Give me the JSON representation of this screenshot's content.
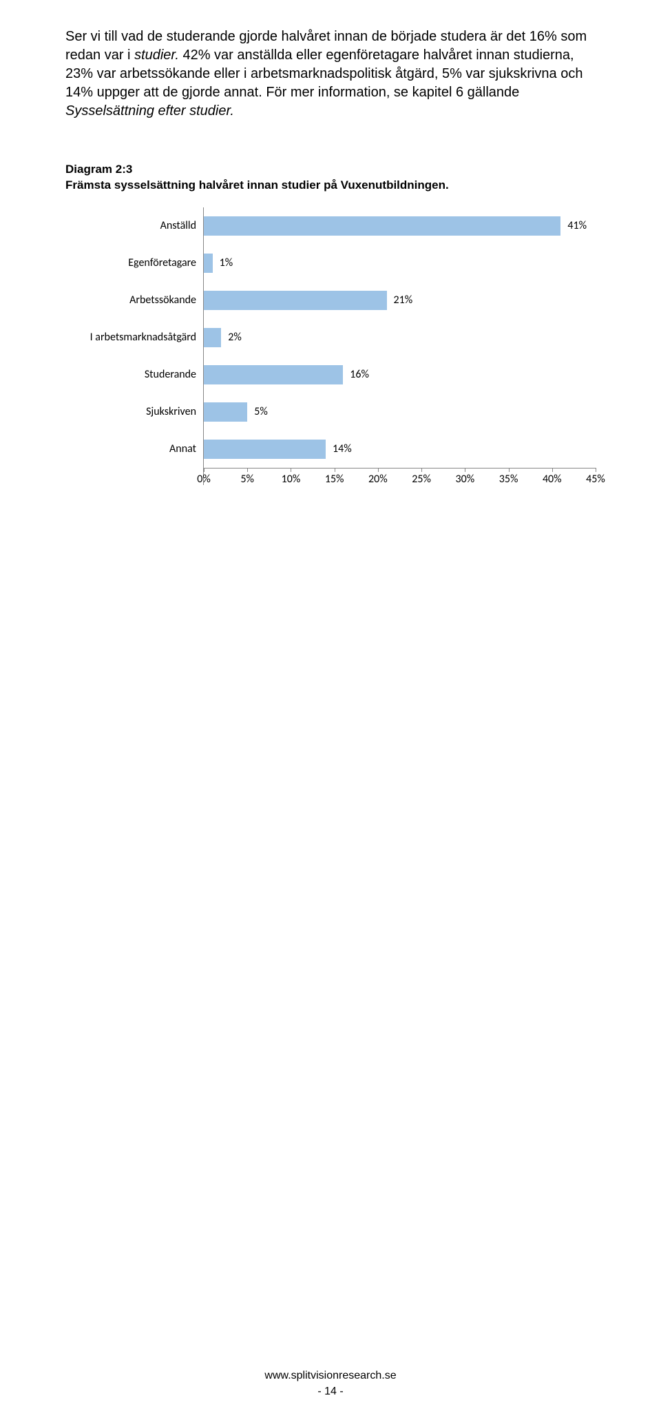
{
  "body_text": {
    "p1_pre": "Ser vi till vad de studerande gjorde halvåret innan de började studera är det 16% som redan var i ",
    "p1_italic": "studier.",
    "p1_post": " 42% var anställda eller egenföretagare halvåret innan studierna, 23% var arbetssökande eller i arbetsmarknadspolitisk åtgärd, 5% var sjukskrivna och 14% uppger att de gjorde annat. För mer information, se kapitel 6 gällande ",
    "p1_italic2": "Sysselsättning efter studier.",
    "p1_end": ""
  },
  "diagram": {
    "label_line1": "Diagram 2:3",
    "label_line2": "Främsta sysselsättning halvåret innan studier på Vuxenutbildningen."
  },
  "chart": {
    "type": "bar",
    "bar_color": "#9dc3e6",
    "axis_color": "#868686",
    "text_color": "#000000",
    "xmin": 0,
    "xmax": 45,
    "xtick_step": 5,
    "categories": [
      {
        "label": "Anställd",
        "value": 41,
        "value_label": "41%"
      },
      {
        "label": "Egenföretagare",
        "value": 1,
        "value_label": "1%"
      },
      {
        "label": "Arbetssökande",
        "value": 21,
        "value_label": "21%"
      },
      {
        "label": "I arbetsmarknadsåtgärd",
        "value": 2,
        "value_label": "2%"
      },
      {
        "label": "Studerande",
        "value": 16,
        "value_label": "16%"
      },
      {
        "label": "Sjukskriven",
        "value": 5,
        "value_label": "5%"
      },
      {
        "label": "Annat",
        "value": 14,
        "value_label": "14%"
      }
    ],
    "xticks": [
      "0%",
      "5%",
      "10%",
      "15%",
      "20%",
      "25%",
      "30%",
      "35%",
      "40%",
      "45%"
    ]
  },
  "footer": {
    "url": "www.splitvisionresearch.se",
    "page": "- 14 -"
  }
}
